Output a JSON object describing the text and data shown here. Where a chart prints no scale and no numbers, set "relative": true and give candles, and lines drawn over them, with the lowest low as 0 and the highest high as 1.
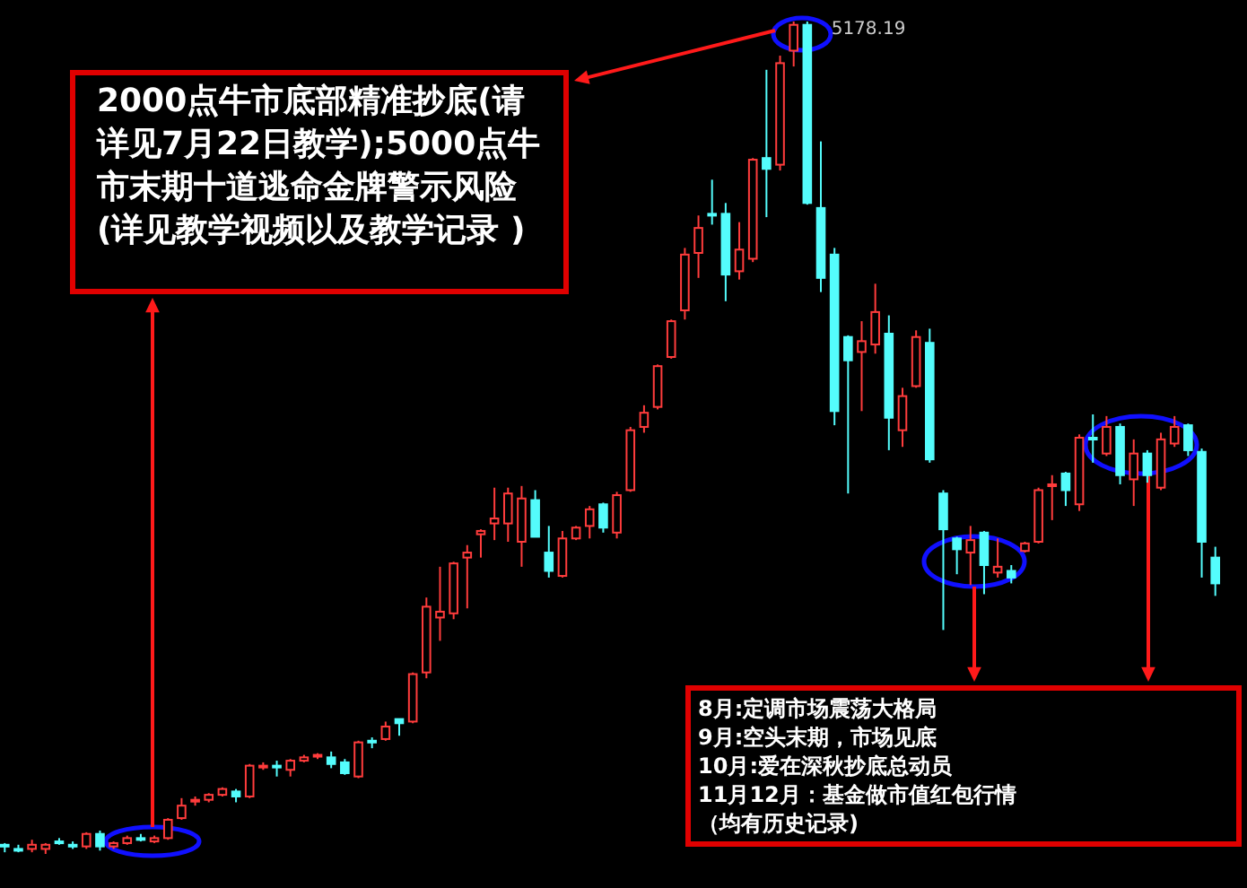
{
  "chart_data": {
    "type": "candlestick",
    "relative": true,
    "categories": [
      null,
      null,
      null,
      null,
      null,
      null,
      null,
      null,
      null,
      null,
      null,
      null,
      null,
      null,
      null,
      null,
      null,
      null,
      null,
      null,
      null,
      null,
      null,
      null,
      null,
      null,
      null,
      null,
      null,
      null,
      null,
      null,
      null,
      null,
      null,
      null,
      null,
      null,
      null,
      null,
      null,
      null,
      null,
      null,
      null,
      null,
      null,
      null,
      null,
      null,
      null,
      null,
      null,
      null,
      null,
      null,
      null,
      null,
      null,
      null,
      null,
      null,
      null,
      null,
      null,
      null,
      null,
      null,
      null,
      null,
      null,
      null,
      null,
      null,
      null,
      null,
      null,
      null,
      null,
      null,
      null,
      null,
      null,
      null,
      null,
      null,
      null,
      null,
      null,
      null
    ],
    "ohlc": [
      [
        0.011,
        0.013,
        0.002,
        0.009
      ],
      [
        0.006,
        0.011,
        0.002,
        0.006
      ],
      [
        0.006,
        0.017,
        0.002,
        0.011
      ],
      [
        0.006,
        0.013,
        0,
        0.011
      ],
      [
        0.015,
        0.019,
        0.011,
        0.015
      ],
      [
        0.011,
        0.015,
        0.006,
        0.011
      ],
      [
        0.009,
        0.026,
        0.006,
        0.024
      ],
      [
        0.024,
        0.028,
        0.004,
        0.009
      ],
      [
        0.009,
        0.015,
        0.006,
        0.013
      ],
      [
        0.013,
        0.022,
        0.011,
        0.019
      ],
      [
        0.019,
        0.024,
        0.015,
        0.019
      ],
      [
        0.015,
        0.022,
        0.013,
        0.019
      ],
      [
        0.019,
        0.043,
        0.017,
        0.041
      ],
      [
        0.043,
        0.067,
        0.041,
        0.058
      ],
      [
        0.065,
        0.069,
        0.058,
        0.065
      ],
      [
        0.065,
        0.073,
        0.062,
        0.071
      ],
      [
        0.071,
        0.08,
        0.069,
        0.078
      ],
      [
        0.075,
        0.078,
        0.062,
        0.069
      ],
      [
        0.069,
        0.108,
        0.067,
        0.106
      ],
      [
        0.106,
        0.11,
        0.101,
        0.106
      ],
      [
        0.106,
        0.112,
        0.093,
        0.106
      ],
      [
        0.101,
        0.114,
        0.093,
        0.112
      ],
      [
        0.112,
        0.119,
        0.11,
        0.116
      ],
      [
        0.119,
        0.121,
        0.114,
        0.119
      ],
      [
        0.116,
        0.123,
        0.103,
        0.108
      ],
      [
        0.11,
        0.114,
        0.095,
        0.097
      ],
      [
        0.093,
        0.136,
        0.091,
        0.134
      ],
      [
        0.136,
        0.14,
        0.127,
        0.136
      ],
      [
        0.138,
        0.159,
        0.136,
        0.153
      ],
      [
        0.162,
        0.162,
        0.142,
        0.157
      ],
      [
        0.159,
        0.218,
        0.157,
        0.216
      ],
      [
        0.218,
        0.308,
        0.211,
        0.297
      ],
      [
        0.284,
        0.345,
        0.256,
        0.291
      ],
      [
        0.289,
        0.351,
        0.282,
        0.349
      ],
      [
        0.356,
        0.371,
        0.295,
        0.362
      ],
      [
        0.384,
        0.39,
        0.356,
        0.388
      ],
      [
        0.397,
        0.44,
        0.377,
        0.403
      ],
      [
        0.397,
        0.44,
        0.375,
        0.433
      ],
      [
        0.375,
        0.442,
        0.345,
        0.427
      ],
      [
        0.425,
        0.437,
        0.381,
        0.381
      ],
      [
        0.362,
        0.394,
        0.332,
        0.34
      ],
      [
        0.334,
        0.388,
        0.332,
        0.379
      ],
      [
        0.379,
        0.394,
        0.377,
        0.392
      ],
      [
        0.394,
        0.418,
        0.379,
        0.414
      ],
      [
        0.42,
        0.422,
        0.386,
        0.392
      ],
      [
        0.386,
        0.435,
        0.379,
        0.431
      ],
      [
        0.437,
        0.513,
        0.435,
        0.509
      ],
      [
        0.513,
        0.539,
        0.506,
        0.53
      ],
      [
        0.537,
        0.588,
        0.534,
        0.586
      ],
      [
        0.597,
        0.642,
        0.595,
        0.64
      ],
      [
        0.653,
        0.728,
        0.642,
        0.72
      ],
      [
        0.722,
        0.767,
        0.692,
        0.752
      ],
      [
        0.769,
        0.81,
        0.756,
        0.769
      ],
      [
        0.769,
        0.782,
        0.664,
        0.696
      ],
      [
        0.7,
        0.759,
        0.69,
        0.726
      ],
      [
        0.715,
        0.836,
        0.711,
        0.834
      ],
      [
        0.836,
        0.942,
        0.765,
        0.823
      ],
      [
        0.828,
        0.959,
        0.821,
        0.95
      ],
      [
        0.965,
        1,
        0.946,
        0.996
      ],
      [
        0.996,
        1,
        0.78,
        0.782
      ],
      [
        0.776,
        0.856,
        0.675,
        0.692
      ],
      [
        0.72,
        0.728,
        0.515,
        0.532
      ],
      [
        0.621,
        0.623,
        0.433,
        0.593
      ],
      [
        0.603,
        0.64,
        0.532,
        0.616
      ],
      [
        0.612,
        0.685,
        0.601,
        0.651
      ],
      [
        0.625,
        0.647,
        0.485,
        0.524
      ],
      [
        0.509,
        0.56,
        0.489,
        0.55
      ],
      [
        0.562,
        0.629,
        0.56,
        0.621
      ],
      [
        0.614,
        0.631,
        0.47,
        0.474
      ],
      [
        0.433,
        0.437,
        0.269,
        0.39
      ],
      [
        0.379,
        0.381,
        0.336,
        0.366
      ],
      [
        0.362,
        0.394,
        0.323,
        0.377
      ],
      [
        0.386,
        0.388,
        0.312,
        0.347
      ],
      [
        0.338,
        0.379,
        0.332,
        0.345
      ],
      [
        0.34,
        0.347,
        0.325,
        0.332
      ],
      [
        0.364,
        0.375,
        0.362,
        0.373
      ],
      [
        0.375,
        0.44,
        0.373,
        0.437
      ],
      [
        0.444,
        0.455,
        0.401,
        0.444
      ],
      [
        0.457,
        0.459,
        0.418,
        0.437
      ],
      [
        0.42,
        0.504,
        0.412,
        0.5
      ],
      [
        0.5,
        0.528,
        0.47,
        0.5
      ],
      [
        0.481,
        0.526,
        0.478,
        0.513
      ],
      [
        0.513,
        0.517,
        0.444,
        0.455
      ],
      [
        0.45,
        0.498,
        0.418,
        0.481
      ],
      [
        0.481,
        0.485,
        0.446,
        0.455
      ],
      [
        0.44,
        0.506,
        0.437,
        0.498
      ],
      [
        0.493,
        0.526,
        0.489,
        0.513
      ],
      [
        0.515,
        0.517,
        0.478,
        0.485
      ],
      [
        0.483,
        0.487,
        0.332,
        0.375
      ],
      [
        0.356,
        0.369,
        0.31,
        0.325
      ]
    ],
    "colors": [
      "#54fcfc",
      "#54fcfc",
      "#ff3c3c",
      "#ff3c3c",
      "#54fcfc",
      "#54fcfc",
      "#ff3c3c",
      "#54fcfc",
      "#ff3c3c",
      "#ff3c3c",
      "#54fcfc",
      "#ff3c3c",
      "#ff3c3c",
      "#ff3c3c",
      "#ff3c3c",
      "#ff3c3c",
      "#ff3c3c",
      "#54fcfc",
      "#ff3c3c",
      "#ff3c3c",
      "#54fcfc",
      "#ff3c3c",
      "#ff3c3c",
      "#ff3c3c",
      "#54fcfc",
      "#54fcfc",
      "#ff3c3c",
      "#54fcfc",
      "#ff3c3c",
      "#54fcfc",
      "#ff3c3c",
      "#ff3c3c",
      "#ff3c3c",
      "#ff3c3c",
      "#ff3c3c",
      "#ff3c3c",
      "#ff3c3c",
      "#ff3c3c",
      "#ff3c3c",
      "#54fcfc",
      "#54fcfc",
      "#ff3c3c",
      "#ff3c3c",
      "#ff3c3c",
      "#54fcfc",
      "#ff3c3c",
      "#ff3c3c",
      "#ff3c3c",
      "#ff3c3c",
      "#ff3c3c",
      "#ff3c3c",
      "#ff3c3c",
      "#54fcfc",
      "#54fcfc",
      "#ff3c3c",
      "#ff3c3c",
      "#54fcfc",
      "#ff3c3c",
      "#ff3c3c",
      "#54fcfc",
      "#54fcfc",
      "#54fcfc",
      "#54fcfc",
      "#ff3c3c",
      "#ff3c3c",
      "#54fcfc",
      "#ff3c3c",
      "#ff3c3c",
      "#54fcfc",
      "#54fcfc",
      "#54fcfc",
      "#ff3c3c",
      "#54fcfc",
      "#ff3c3c",
      "#54fcfc",
      "#ff3c3c",
      "#ff3c3c",
      "#ff3c3c",
      "#54fcfc",
      "#ff3c3c",
      "#54fcfc",
      "#ff3c3c",
      "#54fcfc",
      "#ff3c3c",
      "#54fcfc",
      "#ff3c3c",
      "#ff3c3c",
      "#54fcfc",
      "#54fcfc",
      "#54fcfc"
    ],
    "annotations": [
      "2000点牛市底部精准抄底(请详见7月22日教学);5000点牛市末期十道逃命金牌警示风险(详见教学视频以及教学记录 )",
      "5178.19",
      "8月:定调市场震荡大格局",
      "9月:空头末期，市场见底",
      "10月:爱在深秋抄底总动员",
      "11月12月：基金做市值红包行情",
      "（均有历史记录)"
    ]
  }
}
